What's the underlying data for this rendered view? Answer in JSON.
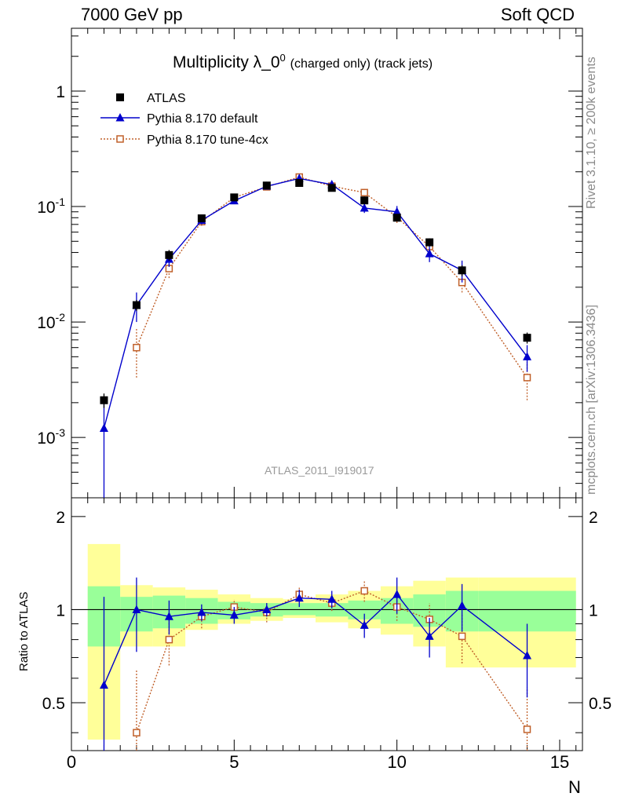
{
  "header": {
    "left": "7000 GeV pp",
    "right": "Soft QCD"
  },
  "title": {
    "main": "Multiplicity λ_0",
    "superscript": "0",
    "suffix": "(charged only) (track jets)"
  },
  "watermark": "ATLAS_2011_I919017",
  "side_text": {
    "top": "Rivet 3.1.10, ≥ 200k events",
    "bottom": "mcplots.cern.ch [arXiv:1306.3436]"
  },
  "legend": [
    {
      "label": "ATLAS",
      "marker": "square-filled",
      "color": "#000000"
    },
    {
      "label": "Pythia 8.170 default",
      "marker": "triangle",
      "color": "#0000cc"
    },
    {
      "label": "Pythia 8.170 tune-4cx",
      "marker": "square-open",
      "color": "#c0602a"
    }
  ],
  "colors": {
    "atlas": "#000000",
    "default": "#0000cc",
    "tune": "#c0602a",
    "band_inner": "#99ff99",
    "band_outer": "#ffff99"
  },
  "chart_data": [
    {
      "type": "scatter",
      "title": "Multiplicity λ_0^0 (charged only) (track jets)",
      "xlabel": "",
      "ylabel": "",
      "xlim": [
        0,
        15.7
      ],
      "ylim": [
        0.0003,
        3.5
      ],
      "yscale": "log",
      "y_tick_labels": [
        "10^-3",
        "10^-2",
        "10^-1",
        "1"
      ],
      "series": [
        {
          "name": "ATLAS",
          "x": [
            1,
            2,
            3,
            4,
            5,
            6,
            7,
            8,
            9,
            10,
            11,
            12,
            14
          ],
          "y": [
            0.0021,
            0.014,
            0.038,
            0.079,
            0.12,
            0.152,
            0.16,
            0.145,
            0.113,
            0.08,
            0.049,
            0.028,
            0.0073
          ],
          "yerr": [
            0.0003,
            0.0015,
            0.004,
            0.005,
            0.006,
            0.007,
            0.007,
            0.007,
            0.006,
            0.005,
            0.004,
            0.003,
            0.0008
          ]
        },
        {
          "name": "Pythia 8.170 default",
          "x": [
            1,
            2,
            3,
            4,
            5,
            6,
            7,
            8,
            9,
            10,
            11,
            12,
            14
          ],
          "y": [
            0.0012,
            0.014,
            0.035,
            0.076,
            0.112,
            0.15,
            0.175,
            0.155,
            0.097,
            0.09,
            0.039,
            0.028,
            0.005
          ],
          "yerr": [
            0.0009,
            0.004,
            0.005,
            0.006,
            0.007,
            0.008,
            0.009,
            0.009,
            0.009,
            0.011,
            0.006,
            0.006,
            0.0013
          ]
        },
        {
          "name": "Pythia 8.170 tune-4cx",
          "x": [
            2,
            3,
            4,
            5,
            6,
            7,
            8,
            9,
            10,
            11,
            12,
            14
          ],
          "y": [
            0.006,
            0.029,
            0.074,
            0.12,
            0.148,
            0.18,
            0.15,
            0.132,
            0.081,
            0.045,
            0.022,
            0.0033
          ],
          "yerr": [
            0.0027,
            0.005,
            0.006,
            0.007,
            0.008,
            0.009,
            0.009,
            0.01,
            0.009,
            0.007,
            0.004,
            0.0012
          ]
        }
      ]
    },
    {
      "type": "scatter",
      "xlabel": "N",
      "ylabel": "Ratio to ATLAS",
      "xlim": [
        0,
        15.7
      ],
      "ylim": [
        0.35,
        2.3
      ],
      "yscale": "log",
      "x_tick_labels": [
        "0",
        "5",
        "10",
        "15"
      ],
      "y_tick_labels": [
        "0.5",
        "1",
        "2"
      ],
      "reference_line": 1,
      "bands": {
        "edges": [
          0.5,
          1.5,
          2.5,
          3.5,
          4.5,
          5.5,
          6.5,
          7.5,
          8.5,
          9.5,
          10.5,
          11.5,
          12.5,
          15.5
        ],
        "inner_lo": [
          0.76,
          0.85,
          0.87,
          0.9,
          0.93,
          0.95,
          0.96,
          0.95,
          0.93,
          0.9,
          0.88,
          0.85,
          0.85
        ],
        "inner_hi": [
          1.19,
          1.1,
          1.11,
          1.09,
          1.06,
          1.05,
          1.05,
          1.05,
          1.07,
          1.09,
          1.12,
          1.15,
          1.15
        ],
        "outer_lo": [
          0.38,
          0.76,
          0.76,
          0.86,
          0.9,
          0.92,
          0.94,
          0.91,
          0.87,
          0.83,
          0.76,
          0.65,
          0.65
        ],
        "outer_hi": [
          1.63,
          1.2,
          1.18,
          1.16,
          1.12,
          1.09,
          1.08,
          1.12,
          1.15,
          1.19,
          1.24,
          1.27,
          1.27
        ]
      },
      "series": [
        {
          "name": "Pythia 8.170 default",
          "x": [
            1,
            2,
            3,
            4,
            5,
            6,
            7,
            8,
            9,
            10,
            11,
            12,
            14
          ],
          "y": [
            0.57,
            1.0,
            0.95,
            0.98,
            0.96,
            1.0,
            1.09,
            1.08,
            0.89,
            1.12,
            0.82,
            1.03,
            0.71
          ],
          "yerr": [
            0.53,
            0.27,
            0.12,
            0.06,
            0.06,
            0.05,
            0.07,
            0.07,
            0.08,
            0.15,
            0.12,
            0.18,
            0.19
          ]
        },
        {
          "name": "Pythia 8.170 tune-4cx",
          "x": [
            2,
            3,
            4,
            5,
            6,
            7,
            8,
            9,
            10,
            11,
            12,
            14
          ],
          "y": [
            0.4,
            0.8,
            0.95,
            1.02,
            0.98,
            1.12,
            1.05,
            1.15,
            1.02,
            0.93,
            0.82,
            0.41
          ],
          "yerr": [
            0.24,
            0.14,
            0.08,
            0.06,
            0.07,
            0.06,
            0.06,
            0.09,
            0.1,
            0.12,
            0.15,
            0.15
          ]
        }
      ]
    }
  ]
}
